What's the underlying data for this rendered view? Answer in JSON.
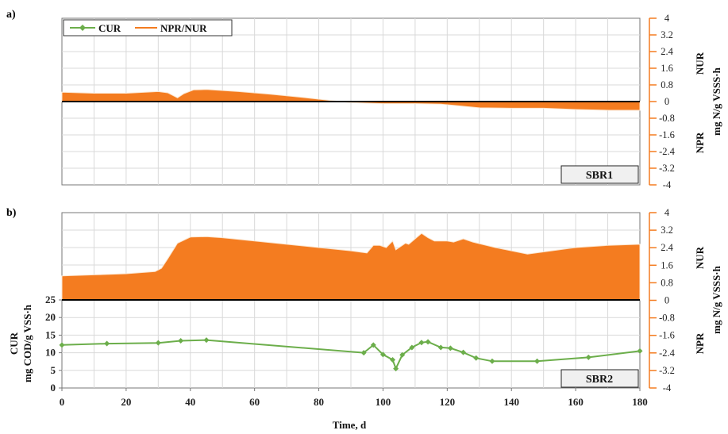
{
  "chart_data": [
    {
      "panel": "a)",
      "type": "area",
      "box_label": "SBR1",
      "legend": [
        "CUR",
        "NPR/NUR"
      ],
      "xlim": [
        0,
        180
      ],
      "right_axis": {
        "ylim": [
          -4,
          4
        ],
        "ticks": [
          "4",
          "3.2",
          "2.4",
          "1.6",
          "0.8",
          "0",
          "-0.8",
          "-1.6",
          "-2.4",
          "-3.2",
          "-4"
        ],
        "label": "mg N/g VSSS·h",
        "upper_label": "NUR",
        "lower_label": "NPR"
      },
      "series": [
        {
          "name": "NPR/NUR",
          "color": "#f47c20",
          "x": [
            0,
            10,
            20,
            30,
            33,
            36,
            38,
            41,
            45,
            55,
            65,
            75,
            85,
            90,
            100,
            110,
            118,
            122,
            130,
            140,
            150,
            160,
            170,
            180
          ],
          "y": [
            0.45,
            0.4,
            0.4,
            0.48,
            0.42,
            0.18,
            0.38,
            0.56,
            0.58,
            0.48,
            0.35,
            0.2,
            0.03,
            -0.05,
            -0.1,
            -0.1,
            -0.12,
            -0.18,
            -0.3,
            -0.32,
            -0.32,
            -0.38,
            -0.42,
            -0.42
          ]
        }
      ]
    },
    {
      "panel": "b)",
      "type": "area+line",
      "box_label": "SBR2",
      "xlim": [
        0,
        180
      ],
      "xticks": [
        "0",
        "20",
        "40",
        "60",
        "80",
        "100",
        "120",
        "140",
        "160",
        "180"
      ],
      "xlabel": "Time, d",
      "right_axis": {
        "ylim": [
          -4,
          4
        ],
        "ticks": [
          "4",
          "3.2",
          "2.4",
          "1.6",
          "0.8",
          "0",
          "-0.8",
          "-1.6",
          "-2.4",
          "-3.2",
          "-4"
        ],
        "label": "mg N/g VSSS·h",
        "upper_label": "NUR",
        "lower_label": "NPR"
      },
      "left_axis": {
        "ylim": [
          0,
          25
        ],
        "ticks": [
          "25",
          "20",
          "15",
          "10",
          "5",
          "0"
        ],
        "label_line1": "CUR",
        "label_line2": "mg COD/g VSS·h"
      },
      "series": [
        {
          "name": "NPR/NUR",
          "color": "#f47c20",
          "x": [
            0,
            10,
            20,
            29,
            31,
            33,
            36,
            40,
            45,
            50,
            60,
            70,
            80,
            90,
            95,
            97,
            99,
            101,
            103,
            104,
            105,
            107,
            108,
            110,
            112,
            114,
            116,
            120,
            122,
            125,
            128,
            135,
            145,
            160,
            170,
            180
          ],
          "y": [
            1.1,
            1.15,
            1.2,
            1.3,
            1.45,
            1.9,
            2.6,
            2.88,
            2.9,
            2.85,
            2.7,
            2.55,
            2.4,
            2.25,
            2.15,
            2.5,
            2.5,
            2.4,
            2.7,
            2.3,
            2.4,
            2.6,
            2.55,
            2.8,
            3.05,
            2.85,
            2.7,
            2.7,
            2.65,
            2.8,
            2.65,
            2.4,
            2.1,
            2.4,
            2.5,
            2.55
          ]
        },
        {
          "name": "CUR",
          "color": "#6cae4b",
          "x": [
            0,
            14,
            30,
            37,
            45,
            94,
            97,
            100,
            103,
            104,
            106,
            109,
            112,
            114,
            118,
            121,
            125,
            129,
            134,
            148,
            164,
            180
          ],
          "y": [
            12.2,
            12.6,
            12.8,
            13.4,
            13.6,
            10.0,
            12.2,
            9.5,
            8.0,
            5.5,
            9.4,
            11.5,
            12.9,
            13.1,
            11.5,
            11.3,
            10.1,
            8.5,
            7.6,
            7.6,
            8.7,
            10.5
          ]
        }
      ]
    }
  ]
}
